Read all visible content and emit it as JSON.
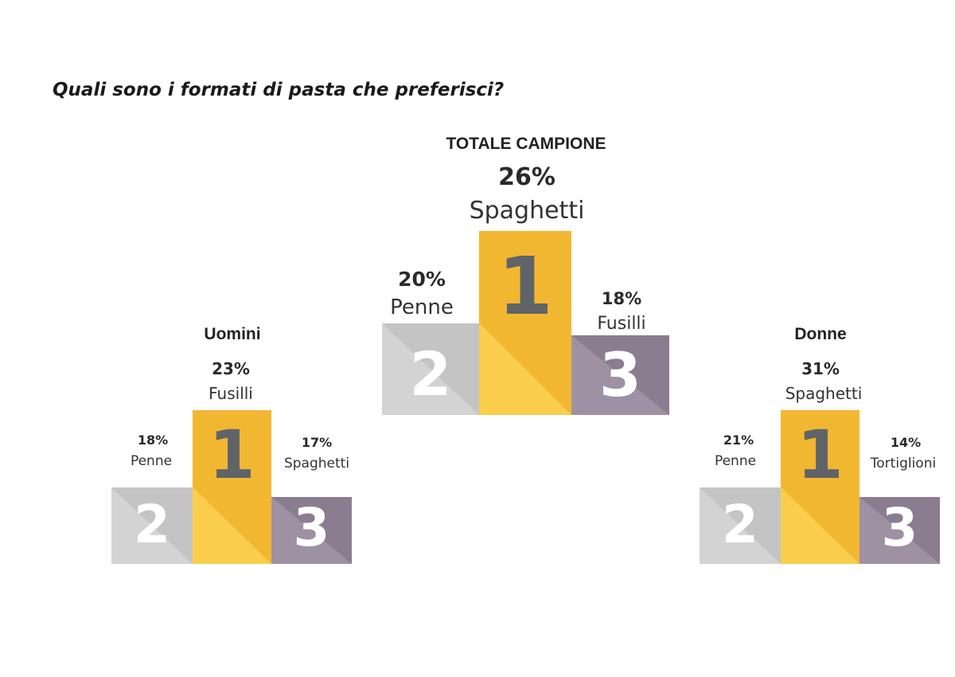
{
  "question": "Quali sono i formati di pasta che preferisci?",
  "colors": {
    "first": "#F2B731",
    "first_light": "#FACE4C",
    "first_num": "#5F6468",
    "second": "#C4C4C4",
    "second_light": "#D3D3D3",
    "second_num": "#FFFFFF",
    "third": "#8B7D90",
    "third_light": "#9E91A3",
    "third_num": "#FFFFFF"
  },
  "chart_data": [
    {
      "type": "bar",
      "title": "TOTALE CAMPIONE",
      "categories": [
        "1",
        "2",
        "3"
      ],
      "labels": [
        "Spaghetti",
        "Penne",
        "Fusilli"
      ],
      "values": [
        26,
        20,
        18
      ],
      "value_labels": [
        "26%",
        "20%",
        "18%"
      ]
    },
    {
      "type": "bar",
      "title": "Uomini",
      "categories": [
        "1",
        "2",
        "3"
      ],
      "labels": [
        "Fusilli",
        "Penne",
        "Spaghetti"
      ],
      "values": [
        23,
        18,
        17
      ],
      "value_labels": [
        "23%",
        "18%",
        "17%"
      ]
    },
    {
      "type": "bar",
      "title": "Donne",
      "categories": [
        "1",
        "2",
        "3"
      ],
      "labels": [
        "Spaghetti",
        "Penne",
        "Tortiglioni"
      ],
      "values": [
        31,
        21,
        14
      ],
      "value_labels": [
        "31%",
        "21%",
        "14%"
      ]
    }
  ]
}
